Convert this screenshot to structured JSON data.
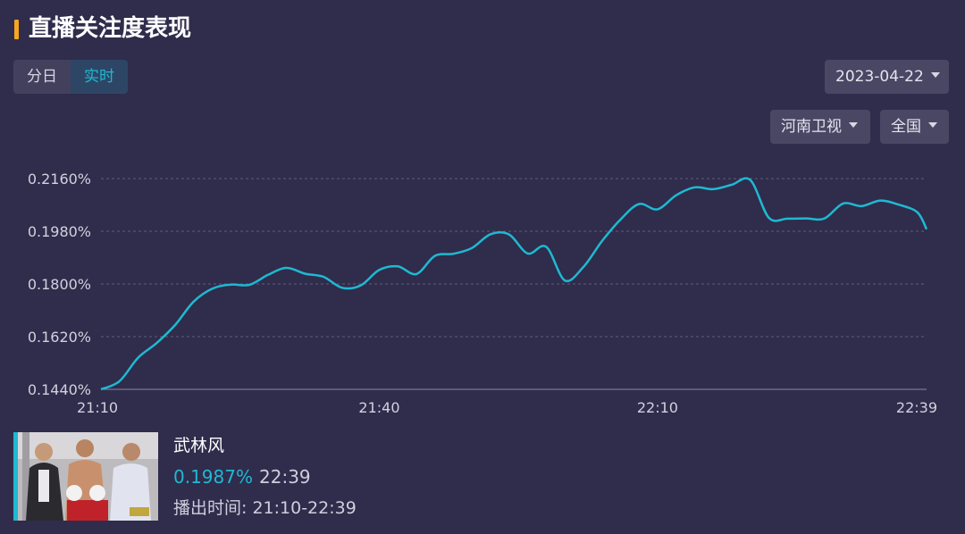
{
  "header": {
    "title": "直播关注度表现"
  },
  "tabs": [
    {
      "label": "分日",
      "active": false
    },
    {
      "label": "实时",
      "active": true
    }
  ],
  "filters": {
    "date": "2023-04-22",
    "channel": "河南卫视",
    "region": "全国"
  },
  "colors": {
    "accent": "#1fb9d1",
    "title_marker": "#f5a623",
    "background": "#302c4c"
  },
  "chart_data": {
    "type": "line",
    "ylim": [
      0.144,
      0.216
    ],
    "y_ticks": [
      "0.2160%",
      "0.1980%",
      "0.1800%",
      "0.1620%",
      "0.1440%"
    ],
    "x_ticks": [
      "21:10",
      "21:40",
      "22:10",
      "22:39"
    ],
    "grid": "horizontal dashed",
    "series": [
      {
        "x": [
          "21:10",
          "21:12",
          "21:14",
          "21:16",
          "21:18",
          "21:20",
          "21:22",
          "21:24",
          "21:26",
          "21:28",
          "21:30",
          "21:32",
          "21:34",
          "21:36",
          "21:38",
          "21:40",
          "21:42",
          "21:44",
          "21:46",
          "21:48",
          "21:50",
          "21:52",
          "21:54",
          "21:56",
          "21:58",
          "22:00",
          "22:02",
          "22:04",
          "22:06",
          "22:08",
          "22:10",
          "22:12",
          "22:14",
          "22:16",
          "22:18",
          "22:20",
          "22:22",
          "22:24",
          "22:26",
          "22:28",
          "22:30",
          "22:32",
          "22:34",
          "22:36",
          "22:38",
          "22:39"
        ],
        "y": [
          0.144,
          0.1468,
          0.1548,
          0.1598,
          0.166,
          0.174,
          0.1784,
          0.1798,
          0.1797,
          0.1831,
          0.1855,
          0.1835,
          0.1824,
          0.1787,
          0.1795,
          0.1848,
          0.186,
          0.1834,
          0.1896,
          0.1903,
          0.1923,
          0.197,
          0.1969,
          0.1904,
          0.1927,
          0.1812,
          0.1858,
          0.1946,
          0.202,
          0.2073,
          0.2055,
          0.2103,
          0.213,
          0.2124,
          0.2139,
          0.2155,
          0.2026,
          0.2023,
          0.2024,
          0.2024,
          0.2075,
          0.2066,
          0.2085,
          0.2071,
          0.2045,
          0.1987
        ]
      }
    ]
  },
  "program": {
    "name": "武林风",
    "rating": "0.1987%",
    "time": "22:39",
    "broadcast": "播出时间: 21:10-22:39"
  }
}
